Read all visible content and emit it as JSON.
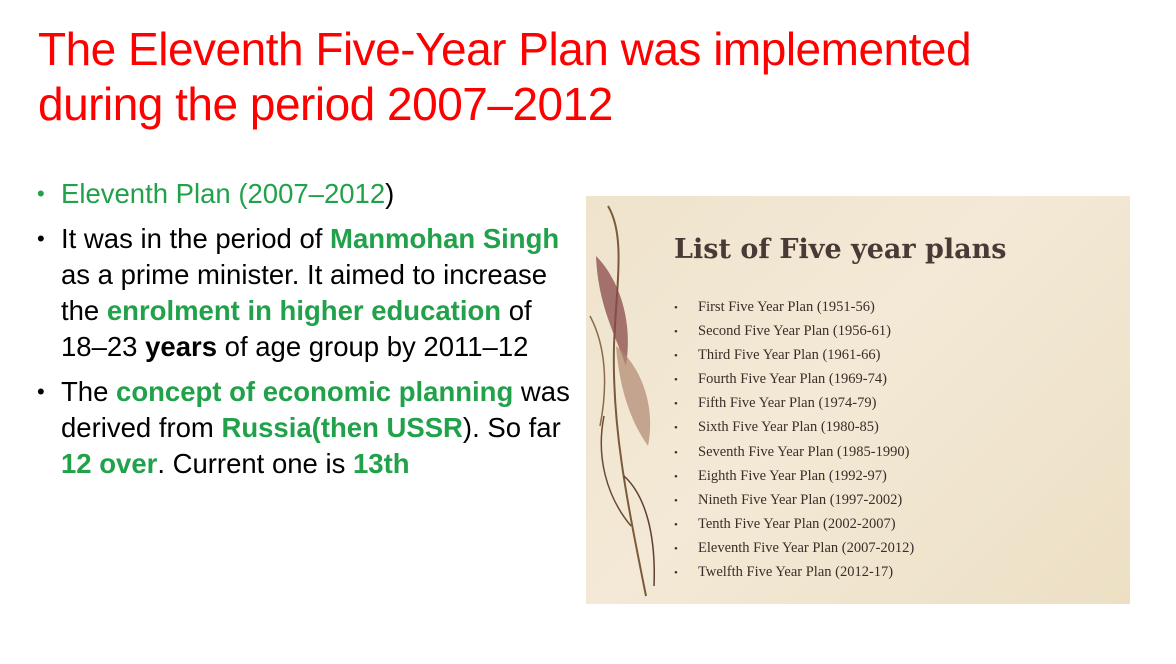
{
  "slide": {
    "title_line1": "The Eleventh Five-Year Plan was implemented",
    "title_line2": "during the period 2007–2012"
  },
  "bullets": {
    "b1": {
      "green": "Eleventh Plan (2007–2012",
      "tail": ")"
    },
    "b2": {
      "t1": "It was in the period of ",
      "g1": "Manmohan Singh",
      "t2": " as a prime minister. It aimed to increase the ",
      "g2": "enrolment in higher education",
      "t3": " of 18–23 ",
      "k1": "years",
      "t4": " of age group by 2011–12"
    },
    "b3": {
      "t1": "The ",
      "g1": "concept of economic planning",
      "t2": " was derived from ",
      "g2": "Russia(then USSR",
      "t3": "). So far ",
      "g3": "12 over",
      "t4": ". Current one is ",
      "g4": "13th"
    }
  },
  "image": {
    "title": "List of Five year plans",
    "items": [
      "First Five Year Plan (1951-56)",
      "Second Five Year Plan (1956-61)",
      "Third Five Year Plan (1961-66)",
      "Fourth Five Year Plan (1969-74)",
      "Fifth Five Year Plan (1974-79)",
      "Sixth Five Year Plan (1980-85)",
      "Seventh Five Year Plan (1985-1990)",
      "Eighth Five Year Plan (1992-97)",
      "Nineth Five Year Plan (1997-2002)",
      "Tenth Five Year Plan (2002-2007)",
      "Eleventh Five Year Plan (2007-2012)",
      "Twelfth Five Year Plan (2012-17)"
    ]
  },
  "colors": {
    "title": "#ff0000",
    "highlight": "#21a14a",
    "panel_bg": "#efe3cc"
  },
  "icons": {
    "bullet": "bullet-dot",
    "plant": "dried-leaf-decoration"
  }
}
